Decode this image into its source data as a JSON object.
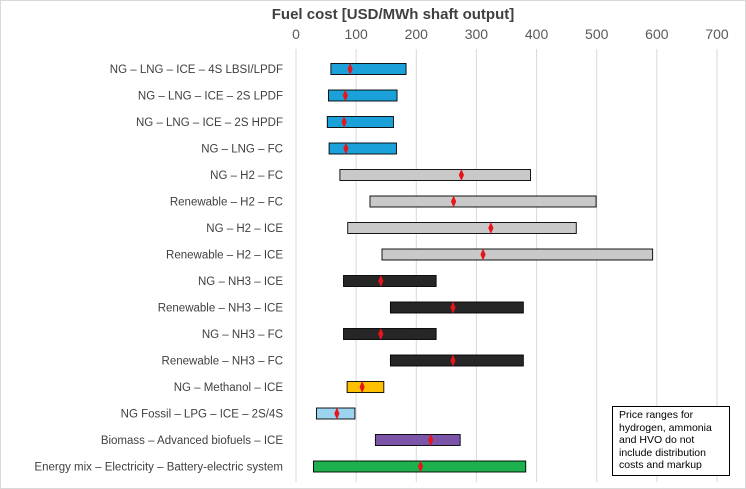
{
  "chart_data": {
    "type": "bar",
    "orientation": "horizontal",
    "subtype": "floating-range-with-marker",
    "xlabel": "Fuel cost [USD/MWh shaft output]",
    "xlim": [
      0,
      700
    ],
    "xticks": [
      0,
      100,
      200,
      300,
      400,
      500,
      600,
      700
    ],
    "xaxis_position": "top",
    "grid": "vertical",
    "categories": [
      "NG – LNG – ICE – 4S LBSI/LPDF",
      "NG – LNG – ICE – 2S LPDF",
      "NG – LNG – ICE – 2S HPDF",
      "NG – LNG – FC",
      "NG – H2 – FC",
      "Renewable – H2 – FC",
      "NG – H2 – ICE",
      "Renewable – H2 – ICE",
      "NG – NH3 – ICE",
      "Renewable – NH3 – ICE",
      "NG – NH3 – FC",
      "Renewable – NH3 – FC",
      "NG – Methanol – ICE",
      "NG Fossil – LPG – ICE – 2S/4S",
      "Biomass – Advanced biofuels – ICE",
      "Energy mix – Electricity – Battery-electric system"
    ],
    "ranges": [
      [
        58,
        183
      ],
      [
        54,
        168
      ],
      [
        52,
        162
      ],
      [
        55,
        167
      ],
      [
        73,
        390
      ],
      [
        123,
        499
      ],
      [
        86,
        466
      ],
      [
        143,
        593
      ],
      [
        79,
        233
      ],
      [
        157,
        378
      ],
      [
        79,
        233
      ],
      [
        157,
        378
      ],
      [
        85,
        146
      ],
      [
        34,
        98
      ],
      [
        132,
        273
      ],
      [
        29,
        382
      ]
    ],
    "markers": [
      90,
      82,
      80,
      83,
      275,
      262,
      324,
      311,
      141,
      261,
      141,
      261,
      110,
      68,
      224,
      207
    ],
    "colors": [
      "#1ba1d9",
      "#1ba1d9",
      "#1ba1d9",
      "#1ba1d9",
      "#c9c9c9",
      "#c9c9c9",
      "#c9c9c9",
      "#c9c9c9",
      "#262626",
      "#262626",
      "#262626",
      "#262626",
      "#ffc000",
      "#9bd3f0",
      "#7a55a8",
      "#1db04e"
    ],
    "marker_color": "#e8141c",
    "note": "Price ranges for hydrogen, ammonia and HVO do not include distribution costs and markup"
  }
}
